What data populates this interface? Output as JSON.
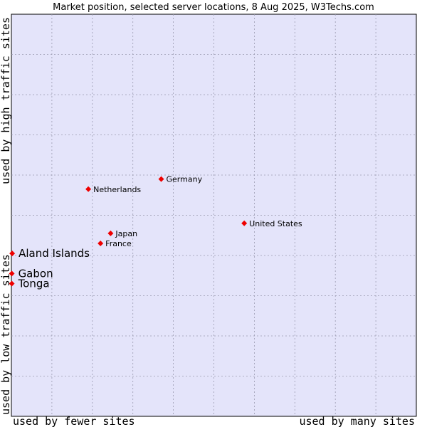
{
  "chart_data": {
    "type": "scatter",
    "title": "Market position, selected server locations, 8 Aug 2025, W3Techs.com",
    "x_axis": {
      "low_label": "used by fewer sites",
      "high_label": "used by many sites"
    },
    "y_axis": {
      "low_label": "used by low traffic sites",
      "high_label": "used by high traffic sites"
    },
    "xlim": [
      0,
      10
    ],
    "ylim": [
      0,
      10
    ],
    "grid": true,
    "series": [
      {
        "points": [
          {
            "label": "Germany",
            "x": 3.7,
            "y": 5.9,
            "highlight": false
          },
          {
            "label": "Netherlands",
            "x": 1.9,
            "y": 5.65,
            "highlight": false
          },
          {
            "label": "United States",
            "x": 5.75,
            "y": 4.8,
            "highlight": false
          },
          {
            "label": "Japan",
            "x": 2.45,
            "y": 4.55,
            "highlight": false
          },
          {
            "label": "France",
            "x": 2.2,
            "y": 4.3,
            "highlight": false
          },
          {
            "label": "Aland Islands",
            "x": 0.02,
            "y": 4.05,
            "highlight": true
          },
          {
            "label": "Gabon",
            "x": 0.01,
            "y": 3.55,
            "highlight": true
          },
          {
            "label": "Tonga",
            "x": 0.01,
            "y": 3.3,
            "highlight": true
          }
        ]
      }
    ]
  },
  "colors": {
    "plot_background": "#e4e4fa",
    "grid": "#9a9ab0",
    "marker": "#ee0000",
    "border": "#000000"
  }
}
